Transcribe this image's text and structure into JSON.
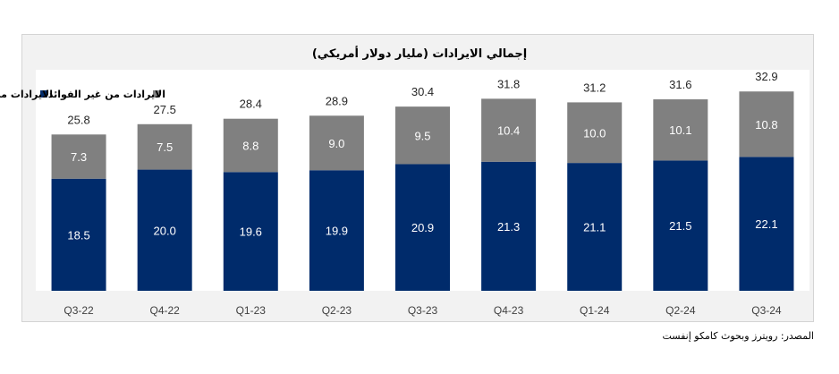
{
  "chart_data": {
    "type": "bar",
    "stacked": true,
    "title": "إجمالي الايرادات (مليار دولار أمريكي)",
    "categories": [
      "Q3-22",
      "Q4-22",
      "Q1-23",
      "Q2-23",
      "Q3-23",
      "Q4-23",
      "Q1-24",
      "Q2-24",
      "Q3-24"
    ],
    "series": [
      {
        "name": "الايرادات من الفوائد",
        "color": "#002b6b",
        "values": [
          18.5,
          20.0,
          19.6,
          19.9,
          20.9,
          21.3,
          21.1,
          21.5,
          22.1
        ]
      },
      {
        "name": "الايرادات من غير الفوائد",
        "color": "#808080",
        "values": [
          7.3,
          7.5,
          8.8,
          9.0,
          9.5,
          10.4,
          10.0,
          10.1,
          10.8
        ]
      }
    ],
    "totals": [
      25.8,
      27.5,
      28.4,
      28.9,
      30.4,
      31.8,
      31.2,
      31.6,
      32.9
    ],
    "legend_position": "top-left",
    "ylim": [
      0,
      35
    ],
    "grid": false
  },
  "source": "المصدر: رويترز وبحوث كامكو إنفست"
}
